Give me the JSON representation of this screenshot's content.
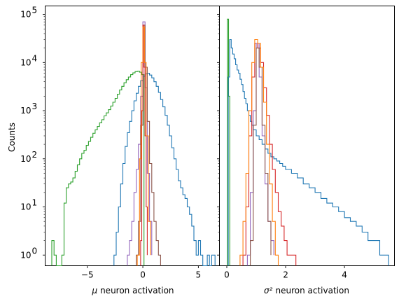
{
  "chart_data": [
    {
      "type": "histogram",
      "panel": "left",
      "xlabel_math": "μ",
      "xlabel": "neuron activation",
      "ylabel": "Counts",
      "yscale": "log",
      "xlim": [
        -8.8,
        6.9
      ],
      "ylim": [
        0.6,
        150000
      ],
      "xticks": [
        -5,
        0,
        5
      ],
      "xtick_labels": [
        "−5",
        "0",
        "5"
      ],
      "yticks": [
        1,
        10,
        100,
        1000,
        10000,
        100000
      ],
      "ytick_labels": [
        "10",
        "10",
        "10",
        "10",
        "10",
        "10"
      ],
      "ytick_exponents": [
        "0",
        "1",
        "2",
        "3",
        "4",
        "5"
      ],
      "series": [
        {
          "color": "#2ca02c",
          "points": [
            [
              -8.2,
              2
            ],
            [
              -8.0,
              1
            ],
            [
              -7.8,
              0.6
            ],
            [
              -7.5,
              0.6
            ],
            [
              -7.3,
              1
            ],
            [
              -7.1,
              12
            ],
            [
              -6.9,
              25
            ],
            [
              -6.7,
              30
            ],
            [
              -6.5,
              33
            ],
            [
              -6.3,
              40
            ],
            [
              -6.1,
              55
            ],
            [
              -5.9,
              75
            ],
            [
              -5.7,
              100
            ],
            [
              -5.5,
              130
            ],
            [
              -5.3,
              150
            ],
            [
              -5.1,
              190
            ],
            [
              -4.9,
              230
            ],
            [
              -4.7,
              280
            ],
            [
              -4.5,
              340
            ],
            [
              -4.3,
              400
            ],
            [
              -4.1,
              470
            ],
            [
              -3.9,
              560
            ],
            [
              -3.7,
              650
            ],
            [
              -3.5,
              780
            ],
            [
              -3.3,
              900
            ],
            [
              -3.1,
              1050
            ],
            [
              -2.9,
              1250
            ],
            [
              -2.7,
              1500
            ],
            [
              -2.5,
              1800
            ],
            [
              -2.3,
              2200
            ],
            [
              -2.1,
              2700
            ],
            [
              -1.9,
              3200
            ],
            [
              -1.7,
              3800
            ],
            [
              -1.5,
              4400
            ],
            [
              -1.3,
              5000
            ],
            [
              -1.1,
              5600
            ],
            [
              -0.9,
              6100
            ],
            [
              -0.7,
              6500
            ],
            [
              -0.5,
              6600
            ],
            [
              -0.3,
              6300
            ],
            [
              -0.1,
              5600
            ],
            [
              0.1,
              0.6
            ]
          ]
        },
        {
          "color": "#1f77b4",
          "points": [
            [
              -2.6,
              1
            ],
            [
              -2.4,
              3
            ],
            [
              -2.2,
              10
            ],
            [
              -2.0,
              30
            ],
            [
              -1.8,
              80
            ],
            [
              -1.6,
              180
            ],
            [
              -1.4,
              350
            ],
            [
              -1.2,
              600
            ],
            [
              -1.0,
              1000
            ],
            [
              -0.8,
              1600
            ],
            [
              -0.6,
              2300
            ],
            [
              -0.4,
              3200
            ],
            [
              -0.2,
              4200
            ],
            [
              0.0,
              5200
            ],
            [
              0.2,
              5800
            ],
            [
              0.4,
              6000
            ],
            [
              0.6,
              5500
            ],
            [
              0.8,
              4800
            ],
            [
              1.0,
              4000
            ],
            [
              1.2,
              3200
            ],
            [
              1.4,
              2400
            ],
            [
              1.6,
              1700
            ],
            [
              1.8,
              1200
            ],
            [
              2.0,
              800
            ],
            [
              2.2,
              500
            ],
            [
              2.4,
              300
            ],
            [
              2.6,
              170
            ],
            [
              2.8,
              100
            ],
            [
              3.0,
              60
            ],
            [
              3.2,
              35
            ],
            [
              3.4,
              25
            ],
            [
              3.6,
              18
            ],
            [
              3.8,
              15
            ],
            [
              4.0,
              10
            ],
            [
              4.2,
              7
            ],
            [
              4.4,
              4
            ],
            [
              4.6,
              2
            ],
            [
              4.8,
              1
            ],
            [
              5.0,
              2
            ],
            [
              5.2,
              1
            ],
            [
              5.4,
              0.6
            ],
            [
              5.8,
              1
            ],
            [
              6.0,
              0.6
            ],
            [
              6.2,
              1
            ],
            [
              6.5,
              0.6
            ]
          ]
        },
        {
          "color": "#9467bd",
          "points": [
            [
              -1.4,
              1
            ],
            [
              -1.2,
              2
            ],
            [
              -1.0,
              5
            ],
            [
              -0.8,
              20
            ],
            [
              -0.6,
              60
            ],
            [
              -0.4,
              200
            ],
            [
              -0.2,
              2000
            ],
            [
              0.0,
              70000
            ],
            [
              0.2,
              3000
            ],
            [
              0.4,
              50
            ],
            [
              0.6,
              5
            ],
            [
              0.8,
              1
            ]
          ]
        },
        {
          "color": "#8c564b",
          "points": [
            [
              -0.6,
              1
            ],
            [
              -0.4,
              5
            ],
            [
              -0.2,
              500
            ],
            [
              0.0,
              60000
            ],
            [
              0.2,
              8000
            ],
            [
              0.4,
              600
            ],
            [
              0.6,
              80
            ],
            [
              0.8,
              20
            ],
            [
              1.0,
              5
            ],
            [
              1.2,
              2
            ],
            [
              1.4,
              1
            ],
            [
              1.6,
              0.6
            ]
          ]
        },
        {
          "color": "#d62728",
          "points": [
            [
              -0.2,
              2
            ],
            [
              -0.1,
              1000
            ],
            [
              0.0,
              60000
            ],
            [
              0.1,
              8000
            ],
            [
              0.2,
              300
            ],
            [
              0.3,
              10
            ],
            [
              0.4,
              1
            ]
          ]
        },
        {
          "color": "#ff7f0e",
          "points": [
            [
              -0.5,
              1
            ],
            [
              -0.3,
              100
            ],
            [
              -0.15,
              10000
            ],
            [
              0.0,
              55000
            ],
            [
              0.15,
              10000
            ],
            [
              0.3,
              300
            ],
            [
              0.5,
              5
            ],
            [
              0.7,
              1
            ]
          ]
        }
      ]
    },
    {
      "type": "histogram",
      "panel": "right",
      "xlabel_math": "σ²",
      "xlabel": "neuron activation",
      "yscale": "log",
      "xlim": [
        -0.25,
        5.7
      ],
      "ylim": [
        0.6,
        150000
      ],
      "xticks": [
        0,
        2,
        4
      ],
      "xtick_labels": [
        "0",
        "2",
        "4"
      ],
      "series": [
        {
          "color": "#2ca02c",
          "points": [
            [
              0.02,
              80000
            ],
            [
              0.06,
              2000
            ],
            [
              0.1,
              0.6
            ]
          ]
        },
        {
          "color": "#1f77b4",
          "points": [
            [
              0.05,
              5000
            ],
            [
              0.1,
              30000
            ],
            [
              0.15,
              20000
            ],
            [
              0.2,
              15000
            ],
            [
              0.25,
              12000
            ],
            [
              0.3,
              9000
            ],
            [
              0.35,
              7000
            ],
            [
              0.4,
              6000
            ],
            [
              0.45,
              4500
            ],
            [
              0.5,
              3500
            ],
            [
              0.55,
              2500
            ],
            [
              0.6,
              1800
            ],
            [
              0.65,
              1400
            ],
            [
              0.7,
              1000
            ],
            [
              0.75,
              800
            ],
            [
              0.8,
              600
            ],
            [
              0.85,
              500
            ],
            [
              0.9,
              400
            ],
            [
              1.0,
              300
            ],
            [
              1.1,
              250
            ],
            [
              1.2,
              200
            ],
            [
              1.3,
              160
            ],
            [
              1.4,
              130
            ],
            [
              1.5,
              110
            ],
            [
              1.6,
              100
            ],
            [
              1.7,
              90
            ],
            [
              1.8,
              80
            ],
            [
              1.9,
              70
            ],
            [
              2.0,
              60
            ],
            [
              2.2,
              50
            ],
            [
              2.4,
              40
            ],
            [
              2.6,
              30
            ],
            [
              2.8,
              25
            ],
            [
              3.0,
              20
            ],
            [
              3.2,
              15
            ],
            [
              3.4,
              12
            ],
            [
              3.6,
              10
            ],
            [
              3.8,
              8
            ],
            [
              4.0,
              6
            ],
            [
              4.2,
              5
            ],
            [
              4.4,
              4
            ],
            [
              4.6,
              3
            ],
            [
              4.8,
              2
            ],
            [
              5.0,
              2
            ],
            [
              5.2,
              1
            ],
            [
              5.4,
              1
            ],
            [
              5.5,
              0.6
            ]
          ]
        },
        {
          "color": "#d62728",
          "points": [
            [
              0.55,
              1
            ],
            [
              0.65,
              10
            ],
            [
              0.75,
              300
            ],
            [
              0.85,
              5000
            ],
            [
              0.95,
              25000
            ],
            [
              1.05,
              20000
            ],
            [
              1.15,
              10000
            ],
            [
              1.25,
              3000
            ],
            [
              1.35,
              800
            ],
            [
              1.45,
              200
            ],
            [
              1.55,
              60
            ],
            [
              1.65,
              20
            ],
            [
              1.75,
              8
            ],
            [
              1.85,
              4
            ],
            [
              1.95,
              2
            ],
            [
              2.05,
              1
            ],
            [
              2.25,
              1
            ],
            [
              2.35,
              0.6
            ]
          ]
        },
        {
          "color": "#9467bd",
          "points": [
            [
              0.7,
              1
            ],
            [
              0.8,
              20
            ],
            [
              0.9,
              1000
            ],
            [
              1.0,
              25000
            ],
            [
              1.1,
              5000
            ],
            [
              1.2,
              300
            ],
            [
              1.3,
              30
            ],
            [
              1.4,
              5
            ],
            [
              1.5,
              2
            ],
            [
              1.6,
              1
            ]
          ]
        },
        {
          "color": "#8c564b",
          "points": [
            [
              0.8,
              2
            ],
            [
              0.9,
              500
            ],
            [
              1.0,
              20000
            ],
            [
              1.1,
              8000
            ],
            [
              1.2,
              500
            ],
            [
              1.3,
              50
            ],
            [
              1.4,
              5
            ],
            [
              1.5,
              1
            ]
          ]
        },
        {
          "color": "#ff7f0e",
          "points": [
            [
              0.45,
              1
            ],
            [
              0.55,
              5
            ],
            [
              0.65,
              50
            ],
            [
              0.75,
              1000
            ],
            [
              0.85,
              10000
            ],
            [
              0.95,
              30000
            ],
            [
              1.05,
              25000
            ],
            [
              1.15,
              8000
            ],
            [
              1.25,
              1500
            ],
            [
              1.35,
              200
            ],
            [
              1.45,
              30
            ],
            [
              1.55,
              5
            ],
            [
              1.65,
              1
            ],
            [
              1.75,
              0.6
            ]
          ]
        }
      ]
    }
  ]
}
